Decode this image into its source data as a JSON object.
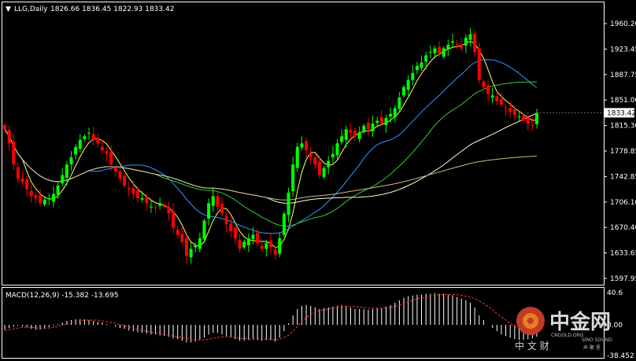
{
  "header": {
    "symbol_label": "LLG,Daily",
    "ohlc": "1826.66 1836.45 1822.93 1833.42",
    "macd_label": "MACD(12,26,9) -15.382 -13.695"
  },
  "price_axis": {
    "ticks": [
      "1960.20",
      "1923.45",
      "1887.75",
      "1851.00",
      "1815.30",
      "1778.85",
      "1742.85",
      "1706.10",
      "1670.40",
      "1633.65",
      "1597.95"
    ],
    "current_price": "1833.42",
    "ylim": [
      1597.95,
      1960.2
    ]
  },
  "macd_axis": {
    "ticks": [
      "40.6",
      "0.00",
      "-38.452"
    ],
    "ylim": [
      -38.452,
      40.6
    ]
  },
  "watermark": {
    "brand": "中金网",
    "site": "CNGOLD.ORG",
    "sub": "中 文 财",
    "badge": "SINO SOUND",
    "badge_sub": "声 聚 里"
  },
  "colors": {
    "bull": "#00ff00",
    "bear": "#ff0000",
    "ma_fast": "#ffff66",
    "ma_mid": "#3399ff",
    "ma_green": "#33cc33",
    "ma_white": "#ffffcc",
    "ma_slow": "#ccbb88",
    "macd_hist": "#ffffff",
    "macd_signal": "#ff3333"
  },
  "chart_data": {
    "type": "candlestick",
    "title": "LLG,Daily",
    "price_ylim": [
      1597.95,
      1960.2
    ],
    "closes": [
      1810,
      1790,
      1760,
      1740,
      1735,
      1725,
      1715,
      1712,
      1705,
      1710,
      1712,
      1718,
      1730,
      1745,
      1760,
      1770,
      1785,
      1795,
      1800,
      1805,
      1795,
      1790,
      1780,
      1775,
      1760,
      1750,
      1740,
      1730,
      1725,
      1718,
      1712,
      1712,
      1705,
      1700,
      1698,
      1705,
      1700,
      1690,
      1670,
      1660,
      1650,
      1630,
      1640,
      1645,
      1655,
      1680,
      1705,
      1715,
      1700,
      1690,
      1675,
      1665,
      1655,
      1640,
      1650,
      1655,
      1660,
      1648,
      1640,
      1648,
      1642,
      1632,
      1655,
      1690,
      1720,
      1760,
      1785,
      1790,
      1780,
      1770,
      1760,
      1745,
      1755,
      1765,
      1775,
      1790,
      1800,
      1810,
      1805,
      1800,
      1806,
      1815,
      1810,
      1818,
      1822,
      1818,
      1826,
      1832,
      1840,
      1855,
      1870,
      1880,
      1890,
      1900,
      1905,
      1915,
      1920,
      1925,
      1918,
      1925,
      1930,
      1935,
      1930,
      1925,
      1940,
      1945,
      1920,
      1880,
      1870,
      1860,
      1858,
      1850,
      1845,
      1840,
      1835,
      1830,
      1828,
      1822,
      1818,
      1815,
      1833
    ],
    "macd_hist": [
      -6,
      -4,
      -2,
      -1,
      -2,
      -3,
      -5,
      -6,
      -6,
      -5,
      -3,
      -1,
      1,
      3,
      5,
      6,
      7,
      7,
      7,
      6,
      5,
      4,
      3,
      1,
      0,
      -2,
      -4,
      -5,
      -7,
      -8,
      -9,
      -10,
      -11,
      -12,
      -12,
      -13,
      -14,
      -15,
      -17,
      -18,
      -20,
      -22,
      -22,
      -21,
      -19,
      -16,
      -12,
      -10,
      -10,
      -12,
      -14,
      -16,
      -18,
      -20,
      -20,
      -19,
      -18,
      -19,
      -20,
      -19,
      -19,
      -21,
      -16,
      -8,
      2,
      12,
      20,
      24,
      25,
      24,
      22,
      20,
      21,
      22,
      23,
      24,
      25,
      24,
      22,
      20,
      20,
      20,
      19,
      20,
      21,
      21,
      23,
      25,
      28,
      31,
      34,
      36,
      37,
      38,
      38,
      39,
      39,
      40,
      39,
      39,
      38,
      37,
      35,
      33,
      31,
      28,
      22,
      12,
      6,
      0,
      -4,
      -8,
      -12,
      -14,
      -16,
      -18,
      -19,
      -19,
      -18,
      -17,
      -15
    ],
    "macd_signal": [
      -7,
      -6,
      -5,
      -4,
      -3,
      -3,
      -3,
      -4,
      -4,
      -4,
      -4,
      -3,
      -2,
      0,
      1,
      3,
      4,
      5,
      6,
      6,
      6,
      6,
      5,
      4,
      3,
      2,
      0,
      -1,
      -3,
      -4,
      -6,
      -7,
      -8,
      -9,
      -10,
      -11,
      -12,
      -13,
      -14,
      -15,
      -16,
      -17,
      -18,
      -19,
      -19,
      -19,
      -18,
      -17,
      -16,
      -15,
      -15,
      -15,
      -16,
      -17,
      -17,
      -18,
      -18,
      -18,
      -18,
      -18,
      -18,
      -19,
      -18,
      -16,
      -13,
      -8,
      -2,
      4,
      9,
      13,
      16,
      18,
      19,
      20,
      21,
      22,
      23,
      23,
      23,
      23,
      22,
      22,
      21,
      21,
      21,
      21,
      21,
      22,
      23,
      25,
      27,
      29,
      31,
      33,
      34,
      35,
      36,
      37,
      38,
      38,
      38,
      38,
      38,
      37,
      36,
      35,
      33,
      30,
      27,
      23,
      19,
      14,
      10,
      6,
      2,
      -2,
      -5,
      -8,
      -10,
      -12,
      -14
    ]
  }
}
